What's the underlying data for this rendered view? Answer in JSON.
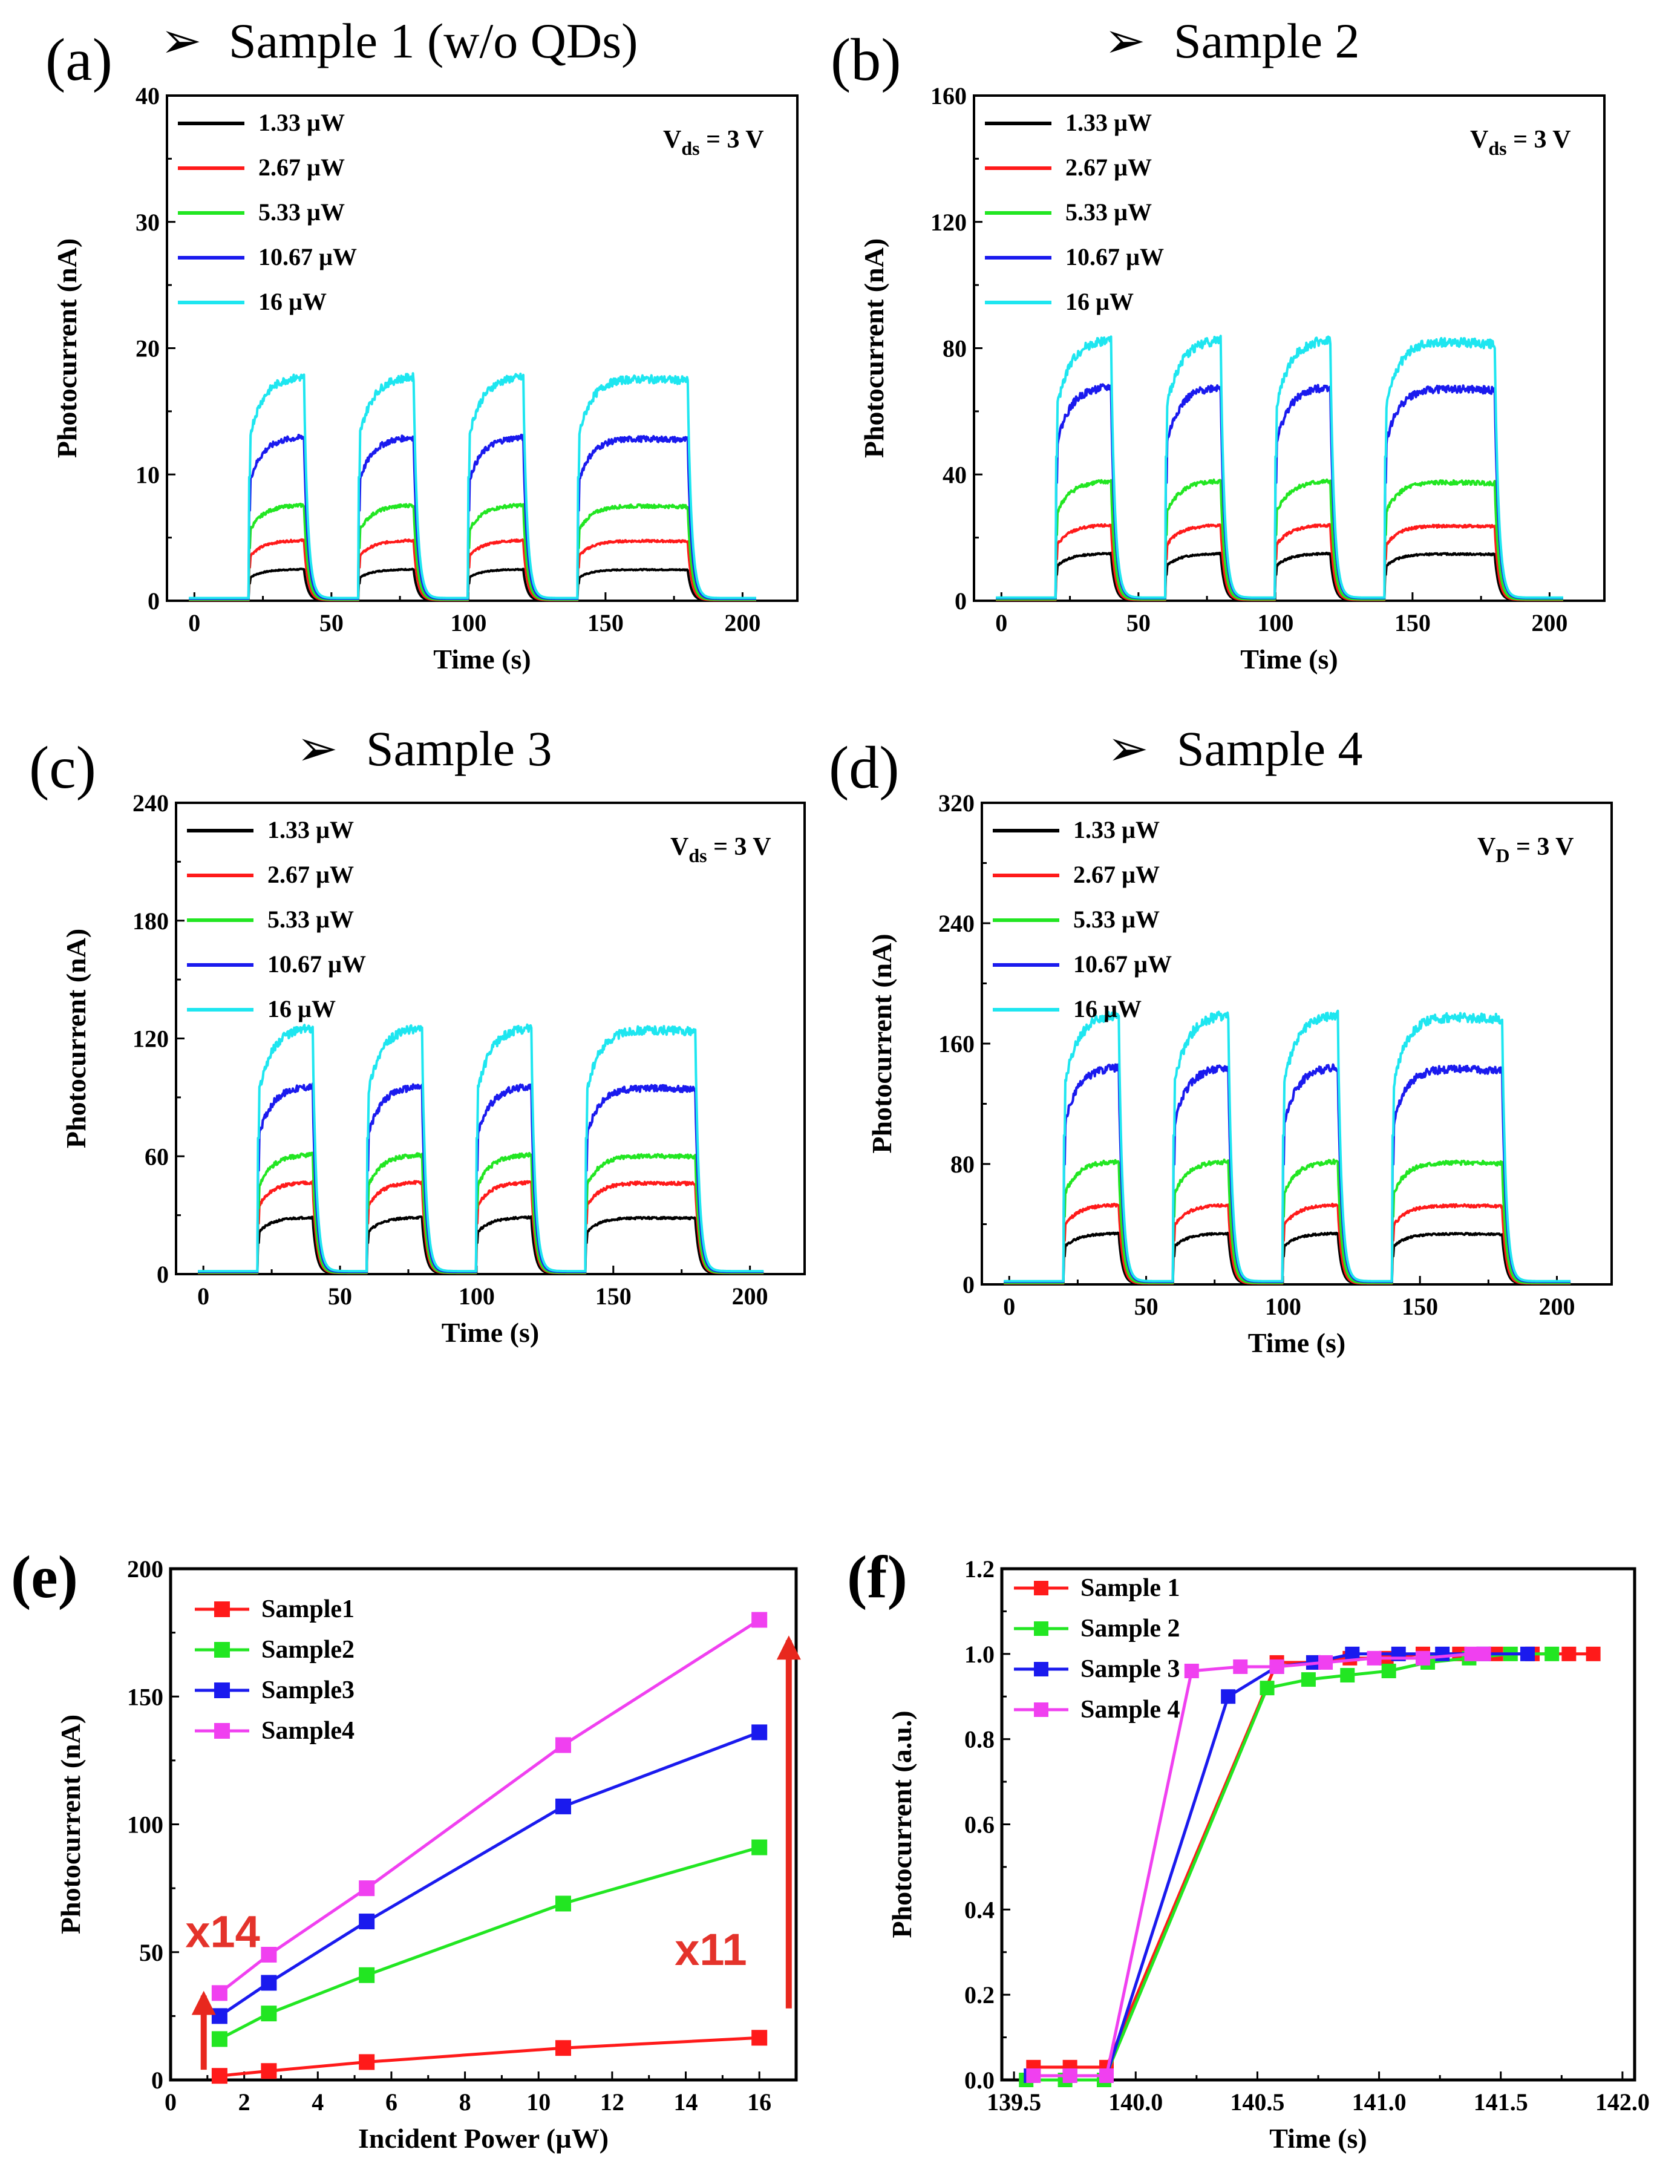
{
  "figure_colors": {
    "black": "#000000",
    "red": "#ff1a1a",
    "green": "#22e622",
    "blue": "#1a1aee",
    "cyan": "#1ee6f0",
    "magenta": "#f040f0",
    "arrow": "#e8281e"
  },
  "chart_data": [
    {
      "id": "a",
      "label": "(a)",
      "title": "Sample 1 (w/o QDs)",
      "type": "line",
      "xlabel": "Time (s)",
      "ylabel": "Photocurrent (nA)",
      "xlim": [
        -10,
        220
      ],
      "ylim": [
        0,
        40
      ],
      "xticks": [
        "0",
        "50",
        "100",
        "150",
        "200"
      ],
      "yticks": [
        "0",
        "10",
        "20",
        "30",
        "40"
      ],
      "annotation": {
        "main": "V",
        "sub": "ds",
        "rest": " = 3 V"
      },
      "legend": [
        "1.33 µW",
        "2.67 µW",
        "5.33 µW",
        "10.67 µW",
        "16 µW"
      ],
      "pulses": [
        [
          20,
          40
        ],
        [
          60,
          80
        ],
        [
          100,
          120
        ],
        [
          140,
          180
        ]
      ],
      "series": [
        {
          "name": "1.33 µW",
          "color": "#000000",
          "level": 2.5
        },
        {
          "name": "2.67 µW",
          "color": "#ff1a1a",
          "level": 4.8
        },
        {
          "name": "5.33 µW",
          "color": "#22e622",
          "level": 7.6
        },
        {
          "name": "10.67 µW",
          "color": "#1a1aee",
          "level": 13.0
        },
        {
          "name": "16 µW",
          "color": "#1ee6f0",
          "level": 17.8
        }
      ]
    },
    {
      "id": "b",
      "label": "(b)",
      "title": "Sample 2",
      "type": "line",
      "xlabel": "Time (s)",
      "ylabel": "Photocurrent (nA)",
      "xlim": [
        -10,
        220
      ],
      "ylim": [
        0,
        160
      ],
      "xticks": [
        "0",
        "50",
        "100",
        "150",
        "200"
      ],
      "yticks": [
        "0",
        "40",
        "80",
        "120",
        "160"
      ],
      "annotation": {
        "main": "V",
        "sub": "ds",
        "rest": " = 3 V"
      },
      "legend": [
        "1.33 µW",
        "2.67 µW",
        "5.33 µW",
        "10.67 µW",
        "16 µW"
      ],
      "pulses": [
        [
          20,
          40
        ],
        [
          60,
          80
        ],
        [
          100,
          120
        ],
        [
          140,
          180
        ]
      ],
      "series": [
        {
          "name": "1.33 µW",
          "color": "#000000",
          "level": 15
        },
        {
          "name": "2.67 µW",
          "color": "#ff1a1a",
          "level": 24
        },
        {
          "name": "5.33 µW",
          "color": "#22e622",
          "level": 38
        },
        {
          "name": "10.67 µW",
          "color": "#1a1aee",
          "level": 68
        },
        {
          "name": "16 µW",
          "color": "#1ee6f0",
          "level": 83
        }
      ]
    },
    {
      "id": "c",
      "label": "(c)",
      "title": "Sample 3",
      "type": "line",
      "xlabel": "Time (s)",
      "ylabel": "Photocurrent (nA)",
      "xlim": [
        -10,
        220
      ],
      "ylim": [
        0,
        240
      ],
      "xticks": [
        "0",
        "50",
        "100",
        "150",
        "200"
      ],
      "yticks": [
        "0",
        "60",
        "120",
        "180",
        "240"
      ],
      "annotation": {
        "main": "V",
        "sub": "ds",
        "rest": " = 3 V"
      },
      "legend": [
        "1.33 µW",
        "2.67 µW",
        "5.33 µW",
        "10.67 µW",
        "16 µW"
      ],
      "pulses": [
        [
          20,
          40
        ],
        [
          60,
          80
        ],
        [
          100,
          120
        ],
        [
          140,
          180
        ]
      ],
      "series": [
        {
          "name": "1.33 µW",
          "color": "#000000",
          "level": 29
        },
        {
          "name": "2.67 µW",
          "color": "#ff1a1a",
          "level": 47
        },
        {
          "name": "5.33 µW",
          "color": "#22e622",
          "level": 61
        },
        {
          "name": "10.67 µW",
          "color": "#1a1aee",
          "level": 96
        },
        {
          "name": "16 µW",
          "color": "#1ee6f0",
          "level": 126
        }
      ]
    },
    {
      "id": "d",
      "label": "(d)",
      "title": "Sample 4",
      "type": "line",
      "xlabel": "Time (s)",
      "ylabel": "Photocurrent (nA)",
      "xlim": [
        -10,
        220
      ],
      "ylim": [
        0,
        320
      ],
      "xticks": [
        "0",
        "50",
        "100",
        "150",
        "200"
      ],
      "yticks": [
        "0",
        "80",
        "160",
        "240",
        "320"
      ],
      "annotation": {
        "main": "V",
        "sub": "D",
        "rest": " = 3 V"
      },
      "legend": [
        "1.33 µW",
        "2.67 µW",
        "5.33 µW",
        "10.67 µW",
        "16 µW"
      ],
      "pulses": [
        [
          20,
          40
        ],
        [
          60,
          80
        ],
        [
          100,
          120
        ],
        [
          140,
          180
        ]
      ],
      "series": [
        {
          "name": "1.33 µW",
          "color": "#000000",
          "level": 34
        },
        {
          "name": "2.67 µW",
          "color": "#ff1a1a",
          "level": 53
        },
        {
          "name": "5.33 µW",
          "color": "#22e622",
          "level": 82
        },
        {
          "name": "10.67 µW",
          "color": "#1a1aee",
          "level": 145
        },
        {
          "name": "16 µW",
          "color": "#1ee6f0",
          "level": 180
        }
      ]
    },
    {
      "id": "e",
      "label": "(e)",
      "type": "line",
      "xlabel": "Incident Power (µW)",
      "ylabel": "Photocurrent (nA)",
      "xlim": [
        0,
        17
      ],
      "ylim": [
        0,
        200
      ],
      "xticks": [
        "0",
        "2",
        "4",
        "6",
        "8",
        "10",
        "12",
        "14",
        "16"
      ],
      "yticks": [
        "0",
        "50",
        "100",
        "150",
        "200"
      ],
      "x": [
        1.33,
        2.67,
        5.33,
        10.67,
        16
      ],
      "series": [
        {
          "name": "Sample1",
          "color": "#ff1a1a",
          "values": [
            1.6,
            3.5,
            7,
            12.5,
            16.5
          ]
        },
        {
          "name": "Sample2",
          "color": "#22e622",
          "values": [
            16,
            26,
            41,
            69,
            91
          ]
        },
        {
          "name": "Sample3",
          "color": "#1a1aee",
          "values": [
            25,
            38,
            62,
            107,
            136
          ]
        },
        {
          "name": "Sample4",
          "color": "#f040f0",
          "values": [
            34,
            49,
            75,
            131,
            180
          ]
        }
      ],
      "annotations": [
        "x14",
        "x11"
      ]
    },
    {
      "id": "f",
      "label": "(f)",
      "type": "line",
      "xlabel": "Time (s)",
      "ylabel": "Photocurrent (a.u.)",
      "xlim": [
        139.45,
        142.05
      ],
      "ylim": [
        0,
        1.2
      ],
      "xticks": [
        "139.5",
        "140.0",
        "140.5",
        "141.0",
        "141.5",
        "142.0"
      ],
      "yticks": [
        "0.0",
        "0.2",
        "0.4",
        "0.6",
        "0.8",
        "1.0",
        "1.2"
      ],
      "series": [
        {
          "name": "Sample 1",
          "color": "#ff1a1a",
          "x": [
            139.58,
            139.73,
            139.88,
            140.58,
            140.73,
            140.88,
            141.03,
            141.18,
            141.33,
            141.48,
            141.63,
            141.78,
            141.88
          ],
          "values": [
            0.03,
            0.03,
            0.03,
            0.98,
            0.98,
            0.99,
            0.99,
            1.0,
            1.0,
            1.0,
            1.0,
            1.0,
            1.0
          ]
        },
        {
          "name": "Sample 2",
          "color": "#22e622",
          "x": [
            139.55,
            139.71,
            139.87,
            140.54,
            140.71,
            140.87,
            141.04,
            141.2,
            141.37,
            141.54,
            141.71
          ],
          "values": [
            0.0,
            0.0,
            0.0,
            0.92,
            0.94,
            0.95,
            0.96,
            0.98,
            0.99,
            1.0,
            1.0
          ]
        },
        {
          "name": "Sample 3",
          "color": "#1a1aee",
          "x": [
            139.57,
            139.73,
            139.88,
            140.38,
            140.58,
            140.73,
            140.89,
            141.08,
            141.26,
            141.43,
            141.61
          ],
          "values": [
            0.01,
            0.01,
            0.01,
            0.9,
            0.97,
            0.98,
            1.0,
            1.0,
            1.0,
            1.0,
            1.0
          ]
        },
        {
          "name": "Sample 4",
          "color": "#f040f0",
          "x": [
            139.58,
            139.73,
            139.88,
            140.23,
            140.43,
            140.58,
            140.78,
            140.98,
            141.18,
            141.38,
            141.43
          ],
          "values": [
            0.01,
            0.01,
            0.01,
            0.96,
            0.97,
            0.97,
            0.98,
            0.99,
            0.99,
            1.0,
            1.0
          ]
        }
      ]
    }
  ]
}
